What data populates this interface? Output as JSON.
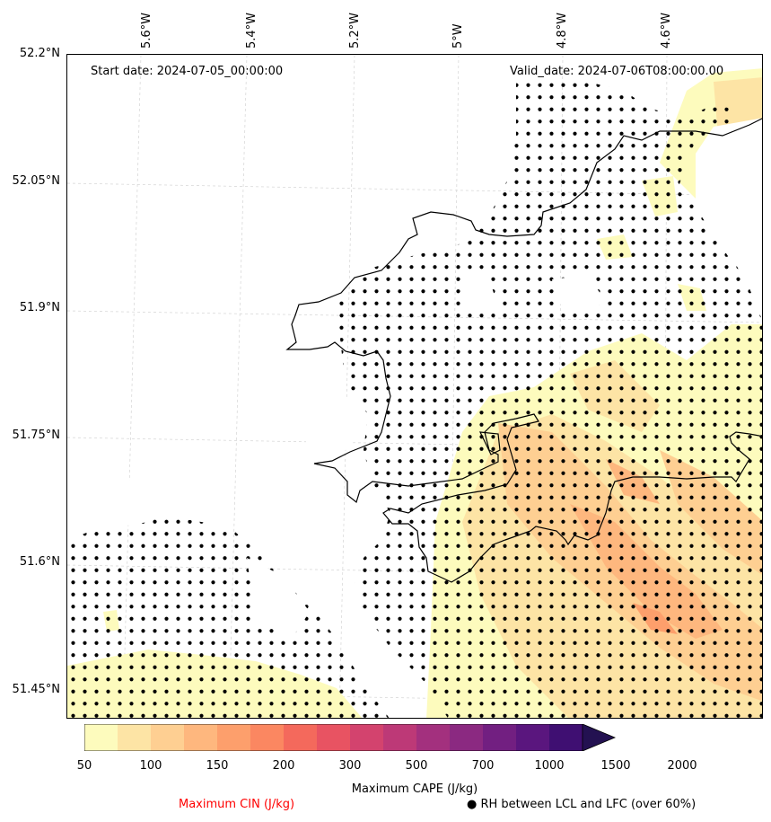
{
  "map": {
    "start_label": "Start date: 2024-07-05_00:00:00",
    "valid_label": "Valid_date: 2024-07-06T08:00:00.00",
    "lon_ticks": [
      "5.6°W",
      "5.4°W",
      "5.2°W",
      "5°W",
      "4.8°W",
      "4.6°W"
    ],
    "lat_ticks": [
      "52.2°N",
      "52.05°N",
      "51.9°N",
      "51.75°N",
      "51.6°N",
      "51.45°N"
    ],
    "region": "Pembrokeshire / South-West Wales coast"
  },
  "colorbar": {
    "levels": [
      "50",
      "100",
      "150",
      "200",
      "300",
      "500",
      "700",
      "1000",
      "1500",
      "2000"
    ],
    "colors": [
      "#fdfbbd",
      "#fde4a5",
      "#fecf92",
      "#feb77e",
      "#fd9f6c",
      "#fb8761",
      "#f4695c",
      "#e85362",
      "#d3436e",
      "#bd3977",
      "#a3307e",
      "#8b2981",
      "#721f81",
      "#5a167e",
      "#3f0f72",
      "#231151"
    ],
    "cape_label": "Maximum CAPE (J/kg)",
    "cin_label": "Maximum CIN (J/kg)",
    "cin_color": "#ff0000",
    "rh_label": "● RH between LCL and LFC (over 60%)"
  }
}
